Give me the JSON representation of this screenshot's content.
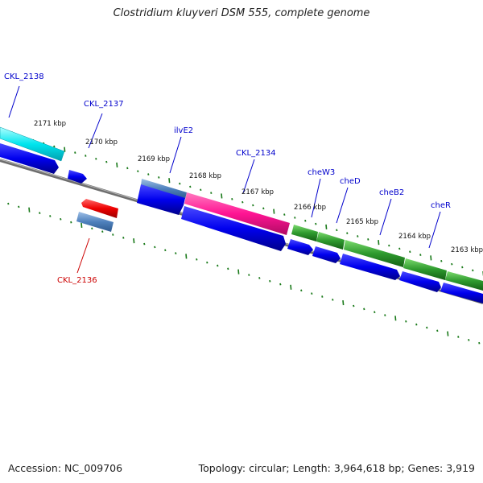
{
  "title": "Clostridium kluyveri DSM 555, complete genome",
  "footer": {
    "accession": "Accession: NC_009706",
    "summary": "Topology: circular; Length: 3,964,618 bp; Genes: 3,919"
  },
  "colors": {
    "backbone": "#7a7a7a",
    "cds": "#0000ee",
    "highlight_cds": "#ff1493",
    "che_cluster": "#2e9a2e",
    "cyan_gene": "#00e5ee",
    "steelblue_gene": "#4f81bd",
    "red_gene": "#ee0000",
    "label_blue": "#0000cc",
    "label_red": "#cc0000",
    "tick": "#1a7a1a"
  },
  "position_ticks": [
    {
      "label": "2171 kbp"
    },
    {
      "label": "2170 kbp"
    },
    {
      "label": "2169 kbp"
    },
    {
      "label": "2168 kbp"
    },
    {
      "label": "2167 kbp"
    },
    {
      "label": "2166 kbp"
    },
    {
      "label": "2165 kbp"
    },
    {
      "label": "2164 kbp"
    },
    {
      "label": "2163 kbp"
    }
  ],
  "gene_labels": [
    {
      "name": "CKL_2138",
      "color": "blue"
    },
    {
      "name": "CKL_2137",
      "color": "blue"
    },
    {
      "name": "ilvE2",
      "color": "blue"
    },
    {
      "name": "CKL_2134",
      "color": "blue"
    },
    {
      "name": "cheW3",
      "color": "blue"
    },
    {
      "name": "cheD",
      "color": "blue"
    },
    {
      "name": "cheB2",
      "color": "blue"
    },
    {
      "name": "cheR",
      "color": "blue"
    },
    {
      "name": "CKL_2136",
      "color": "red"
    }
  ]
}
